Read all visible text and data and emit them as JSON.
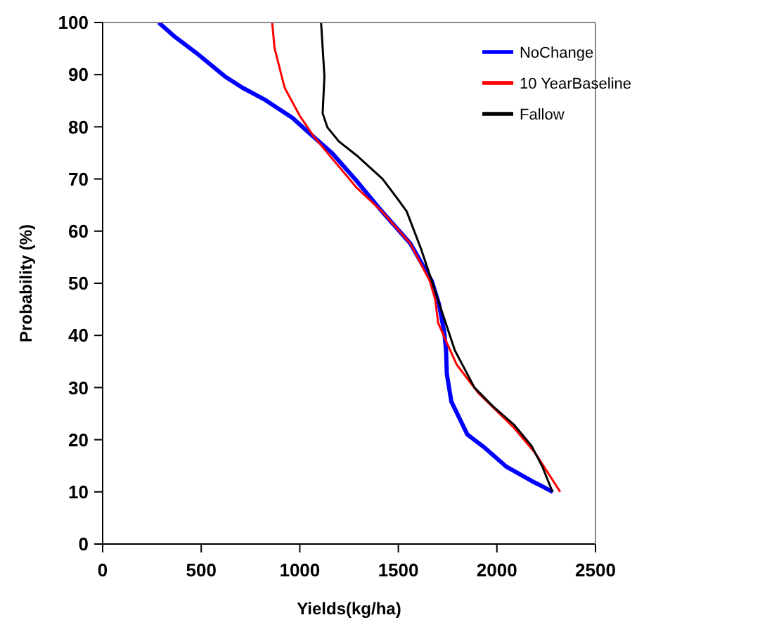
{
  "chart_data": {
    "type": "line",
    "xlabel": "Yields(kg/ha)",
    "ylabel": "Probability (%)",
    "xlim": [
      0,
      2500
    ],
    "xticks": [
      0,
      500,
      1000,
      1500,
      2000,
      2500
    ],
    "ylim": [
      0,
      100
    ],
    "yticks": [
      0,
      10,
      20,
      30,
      40,
      50,
      60,
      70,
      80,
      90,
      100
    ],
    "legend": "top right",
    "marker": "none",
    "line_style": "solid",
    "series": [
      {
        "name": "NoChange",
        "color": "#0000ff",
        "x": [
          284,
          365,
          474,
          619,
          709,
          818,
          963,
          1054,
          1163,
          1289,
          1416,
          1561,
          1670,
          1706,
          1733,
          1742,
          1746,
          1769,
          1850,
          1940,
          2049,
          2176,
          2284
        ],
        "values": [
          100,
          97.3,
          94.2,
          89.7,
          87.5,
          85.3,
          81.7,
          78.6,
          75,
          69.6,
          63.8,
          57.6,
          50.4,
          46,
          40.6,
          37.1,
          32.6,
          27.3,
          21,
          18.4,
          14.8,
          12.1,
          10
        ]
      },
      {
        "name": "10 YearBaseline",
        "color": "#ff0000",
        "x": [
          860,
          872,
          923,
          1000,
          1072,
          1180,
          1289,
          1416,
          1561,
          1660,
          1687,
          1702,
          1742,
          1796,
          1905,
          2086,
          2195,
          2321
        ],
        "values": [
          100,
          95.1,
          87.5,
          82.1,
          78.1,
          73.2,
          68.3,
          63.8,
          57.6,
          50.4,
          46.9,
          42.4,
          38.9,
          34.4,
          29,
          22.3,
          17.4,
          10
        ]
      },
      {
        "name": "Fallow",
        "color": "#000000",
        "x": [
          1108,
          1125,
          1116,
          1140,
          1198,
          1289,
          1420,
          1500,
          1542,
          1614,
          1670,
          1724,
          1787,
          1886,
          1977,
          2086,
          2176,
          2231,
          2282
        ],
        "values": [
          100,
          89.7,
          82.6,
          79.9,
          77.2,
          74.5,
          70,
          66,
          63.8,
          56.7,
          50.4,
          44.2,
          37.1,
          30,
          26.5,
          22.9,
          18.8,
          14.8,
          10
        ]
      }
    ]
  }
}
